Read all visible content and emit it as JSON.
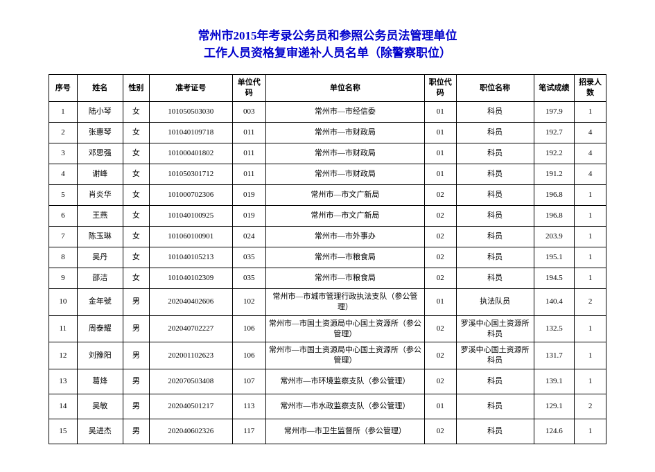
{
  "title_line1": "常州市2015年考录公务员和参照公务员法管理单位",
  "title_line2": "工作人员资格复审递补人员名单（除警察职位）",
  "headers": {
    "idx": "序号",
    "name": "姓名",
    "sex": "性别",
    "exam": "准考证号",
    "ucode": "单位代码",
    "unit": "单位名称",
    "pcode": "职位代码",
    "pos": "职位名称",
    "score": "笔试成绩",
    "quota": "招录人数"
  },
  "rows": [
    {
      "idx": "1",
      "name": "陆小琴",
      "sex": "女",
      "exam": "101050503030",
      "ucode": "003",
      "unit": "常州市—市经信委",
      "pcode": "01",
      "pos": "科员",
      "score": "197.9",
      "quota": "1"
    },
    {
      "idx": "2",
      "name": "张惠琴",
      "sex": "女",
      "exam": "101040109718",
      "ucode": "011",
      "unit": "常州市—市财政局",
      "pcode": "01",
      "pos": "科员",
      "score": "192.7",
      "quota": "4"
    },
    {
      "idx": "3",
      "name": "邓思强",
      "sex": "女",
      "exam": "101000401802",
      "ucode": "011",
      "unit": "常州市—市财政局",
      "pcode": "01",
      "pos": "科员",
      "score": "192.2",
      "quota": "4"
    },
    {
      "idx": "4",
      "name": "谢峰",
      "sex": "女",
      "exam": "101050301712",
      "ucode": "011",
      "unit": "常州市—市财政局",
      "pcode": "01",
      "pos": "科员",
      "score": "191.2",
      "quota": "4"
    },
    {
      "idx": "5",
      "name": "肖炎华",
      "sex": "女",
      "exam": "101000702306",
      "ucode": "019",
      "unit": "常州市—市文广新局",
      "pcode": "02",
      "pos": "科员",
      "score": "196.8",
      "quota": "1"
    },
    {
      "idx": "6",
      "name": "王燕",
      "sex": "女",
      "exam": "101040100925",
      "ucode": "019",
      "unit": "常州市—市文广新局",
      "pcode": "02",
      "pos": "科员",
      "score": "196.8",
      "quota": "1"
    },
    {
      "idx": "7",
      "name": "陈玉琳",
      "sex": "女",
      "exam": "101060100901",
      "ucode": "024",
      "unit": "常州市—市外事办",
      "pcode": "02",
      "pos": "科员",
      "score": "203.9",
      "quota": "1"
    },
    {
      "idx": "8",
      "name": "吴丹",
      "sex": "女",
      "exam": "101040105213",
      "ucode": "035",
      "unit": "常州市—市粮食局",
      "pcode": "02",
      "pos": "科员",
      "score": "195.1",
      "quota": "1"
    },
    {
      "idx": "9",
      "name": "邵洁",
      "sex": "女",
      "exam": "101040102309",
      "ucode": "035",
      "unit": "常州市—市粮食局",
      "pcode": "02",
      "pos": "科员",
      "score": "194.5",
      "quota": "1"
    },
    {
      "idx": "10",
      "name": "金年號",
      "sex": "男",
      "exam": "202040402606",
      "ucode": "102",
      "unit": "常州市—市城市管理行政执法支队（参公管理）",
      "pcode": "01",
      "pos": "执法队员",
      "score": "140.4",
      "quota": "2"
    },
    {
      "idx": "11",
      "name": "周泰耀",
      "sex": "男",
      "exam": "202040702227",
      "ucode": "106",
      "unit": "常州市—市国土资源局中心国土资源所（参公管理）",
      "pcode": "02",
      "pos": "罗溪中心国土资源所科员",
      "score": "132.5",
      "quota": "1"
    },
    {
      "idx": "12",
      "name": "刘豫阳",
      "sex": "男",
      "exam": "202001102623",
      "ucode": "106",
      "unit": "常州市—市国土资源局中心国土资源所（参公管理）",
      "pcode": "02",
      "pos": "罗溪中心国土资源所科员",
      "score": "131.7",
      "quota": "1"
    },
    {
      "idx": "13",
      "name": "葛烽",
      "sex": "男",
      "exam": "202070503408",
      "ucode": "107",
      "unit": "常州市—市环境监察支队（参公管理）",
      "pcode": "02",
      "pos": "科员",
      "score": "139.1",
      "quota": "1"
    },
    {
      "idx": "14",
      "name": "吴敏",
      "sex": "男",
      "exam": "202040501217",
      "ucode": "113",
      "unit": "常州市—市水政监察支队（参公管理）",
      "pcode": "01",
      "pos": "科员",
      "score": "129.1",
      "quota": "2"
    },
    {
      "idx": "15",
      "name": "吴进杰",
      "sex": "男",
      "exam": "202040602326",
      "ucode": "117",
      "unit": "常州市—市卫生监督所（参公管理）",
      "pcode": "02",
      "pos": "科员",
      "score": "124.6",
      "quota": "1"
    }
  ],
  "tall_rows": [
    9,
    10,
    11,
    12,
    13,
    14
  ]
}
